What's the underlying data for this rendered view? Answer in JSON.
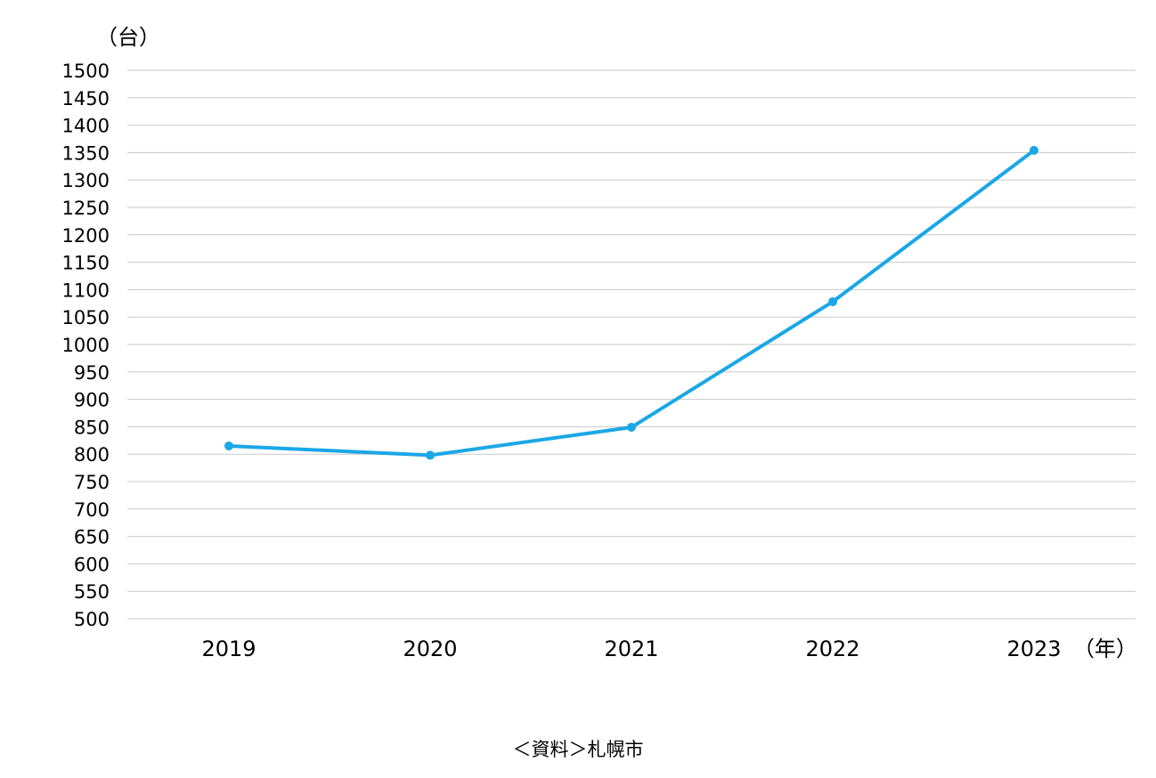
{
  "chart_data": {
    "type": "line",
    "title": "",
    "ylabel": "（台）",
    "xlabel": "（年）",
    "categories": [
      "2019",
      "2020",
      "2021",
      "2022",
      "2023"
    ],
    "series": [
      {
        "values": [
          815,
          798,
          849,
          1078,
          1354
        ],
        "color": "#1aa7e6"
      }
    ],
    "ylim": [
      500,
      1500
    ],
    "ytick_step": 50,
    "yticks": [
      "500",
      "550",
      "600",
      "650",
      "700",
      "750",
      "800",
      "850",
      "900",
      "950",
      "1000",
      "1050",
      "1100",
      "1150",
      "1200",
      "1250",
      "1300",
      "1350",
      "1400",
      "1450",
      "1500"
    ],
    "grid": true,
    "legend": "none"
  },
  "source_note": "＜資料＞札幌市"
}
